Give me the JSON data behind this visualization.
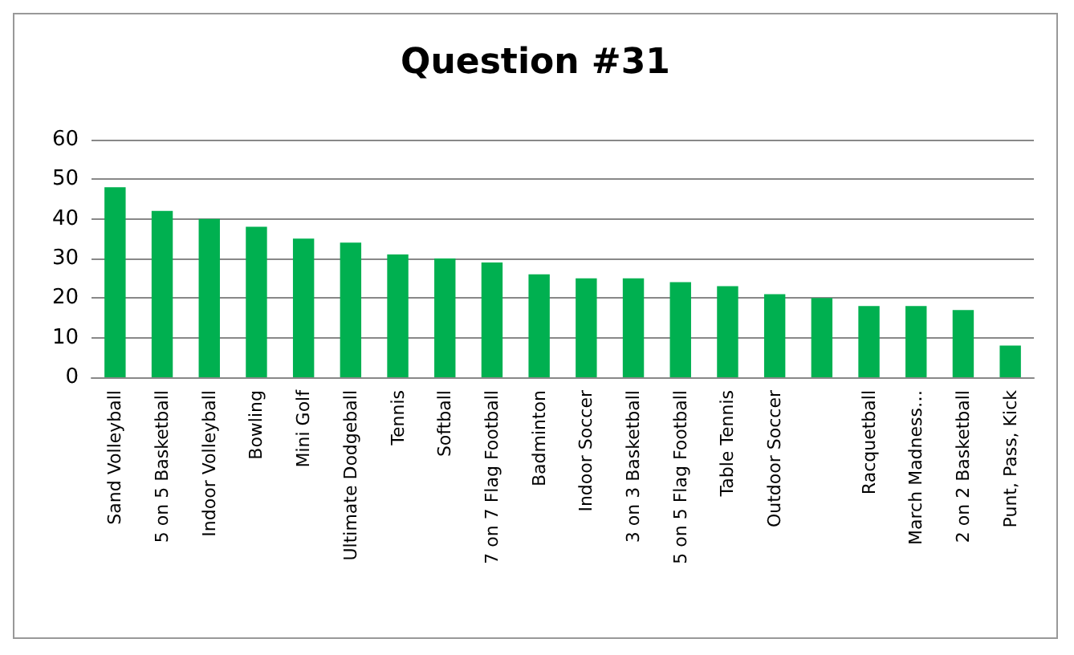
{
  "chart_data": {
    "type": "bar",
    "title": "Question #31",
    "categories": [
      "Sand Volleyball",
      "5 on 5 Basketball",
      "Indoor Volleyball",
      "Bowling",
      "Mini Golf",
      "Ultimate Dodgeball",
      "Tennis",
      "Softball",
      "7 on 7 Flag Football",
      "Badminton",
      "Indoor Soccer",
      "3 on 3 Basketball",
      "5 on 5 Flag Football",
      "Table Tennis",
      "Outdoor Soccer",
      null,
      "Racquetball",
      "March Madness…",
      "2 on 2 Basketball",
      "Punt, Pass, Kick"
    ],
    "values": [
      48,
      42,
      40,
      38,
      35,
      34,
      31,
      30,
      29,
      26,
      25,
      25,
      24,
      23,
      21,
      20,
      18,
      18,
      17,
      8
    ],
    "color": "#00b050",
    "ylim": [
      0,
      60
    ],
    "yticks": [
      0,
      10,
      20,
      30,
      40,
      50,
      60
    ],
    "grid": "y"
  }
}
